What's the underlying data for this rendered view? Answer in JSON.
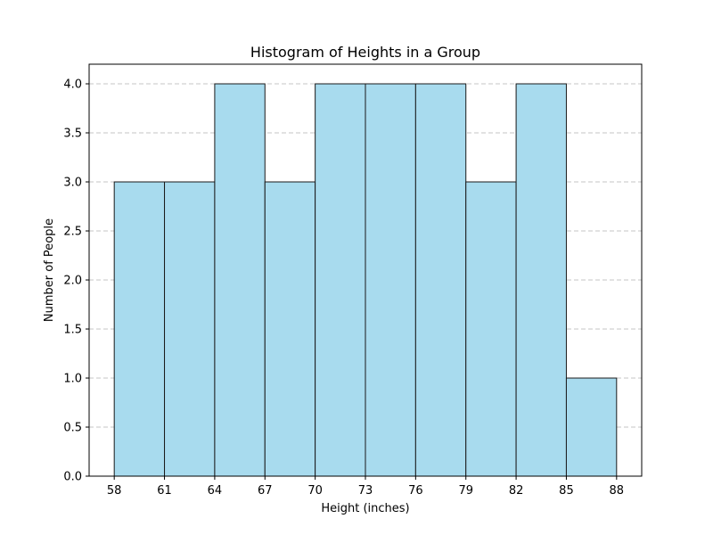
{
  "chart_data": {
    "type": "bar",
    "title": "Histogram of Heights in a Group",
    "xlabel": "Height (inches)",
    "ylabel": "Number of People",
    "bin_edges": [
      58,
      61,
      64,
      67,
      70,
      73,
      76,
      79,
      82,
      85,
      88
    ],
    "counts": [
      3,
      3,
      4,
      3,
      4,
      4,
      4,
      3,
      4,
      1
    ],
    "xlim": [
      56.5,
      89.5
    ],
    "ylim": [
      0,
      4.2
    ],
    "xticks": [
      "58",
      "61",
      "64",
      "67",
      "70",
      "73",
      "76",
      "79",
      "82",
      "85",
      "88"
    ],
    "yticks": [
      "0.0",
      "0.5",
      "1.0",
      "1.5",
      "2.0",
      "2.5",
      "3.0",
      "3.5",
      "4.0"
    ],
    "grid": "y-dashed",
    "bar_color": "#a8dbee",
    "edge_color": "#1a1a1a"
  }
}
